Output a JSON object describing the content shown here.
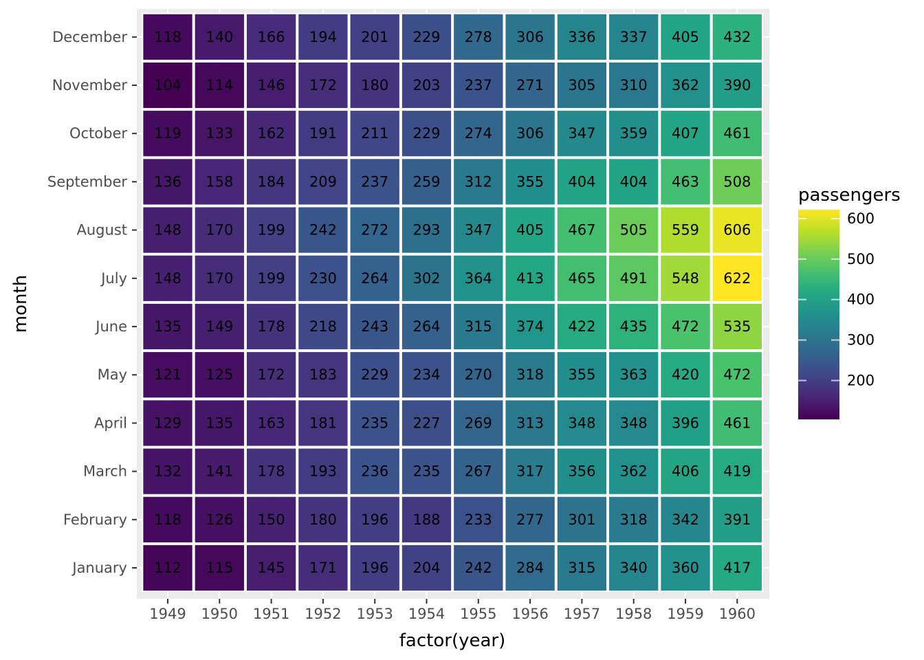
{
  "chart_data": {
    "type": "heatmap",
    "xlabel": "factor(year)",
    "ylabel": "month",
    "x_categories": [
      "1949",
      "1950",
      "1951",
      "1952",
      "1953",
      "1954",
      "1955",
      "1956",
      "1957",
      "1958",
      "1959",
      "1960"
    ],
    "y_categories": [
      "January",
      "February",
      "March",
      "April",
      "May",
      "June",
      "July",
      "August",
      "September",
      "October",
      "November",
      "December"
    ],
    "values": [
      [
        112,
        115,
        145,
        171,
        196,
        204,
        242,
        284,
        315,
        340,
        360,
        417
      ],
      [
        118,
        126,
        150,
        180,
        196,
        188,
        233,
        277,
        301,
        318,
        342,
        391
      ],
      [
        132,
        141,
        178,
        193,
        236,
        235,
        267,
        317,
        356,
        362,
        406,
        419
      ],
      [
        129,
        135,
        163,
        181,
        235,
        227,
        269,
        313,
        348,
        348,
        396,
        461
      ],
      [
        121,
        125,
        172,
        183,
        229,
        234,
        270,
        318,
        355,
        363,
        420,
        472
      ],
      [
        135,
        149,
        178,
        218,
        243,
        264,
        315,
        374,
        422,
        435,
        472,
        535
      ],
      [
        148,
        170,
        199,
        230,
        264,
        302,
        364,
        413,
        465,
        491,
        548,
        622
      ],
      [
        148,
        170,
        199,
        242,
        272,
        293,
        347,
        405,
        467,
        505,
        559,
        606
      ],
      [
        136,
        158,
        184,
        209,
        237,
        259,
        312,
        355,
        404,
        404,
        463,
        508
      ],
      [
        119,
        133,
        162,
        191,
        211,
        229,
        274,
        306,
        347,
        359,
        407,
        461
      ],
      [
        104,
        114,
        146,
        172,
        180,
        203,
        237,
        271,
        305,
        310,
        362,
        390
      ],
      [
        118,
        140,
        166,
        194,
        201,
        229,
        278,
        306,
        336,
        337,
        405,
        432
      ]
    ],
    "legend": {
      "title": "passengers",
      "ticks": [
        200,
        300,
        400,
        500,
        600
      ],
      "min": 104,
      "max": 622,
      "position": "right"
    },
    "colormap": "viridis",
    "panel_background": "#ebebeb",
    "grid": true
  }
}
